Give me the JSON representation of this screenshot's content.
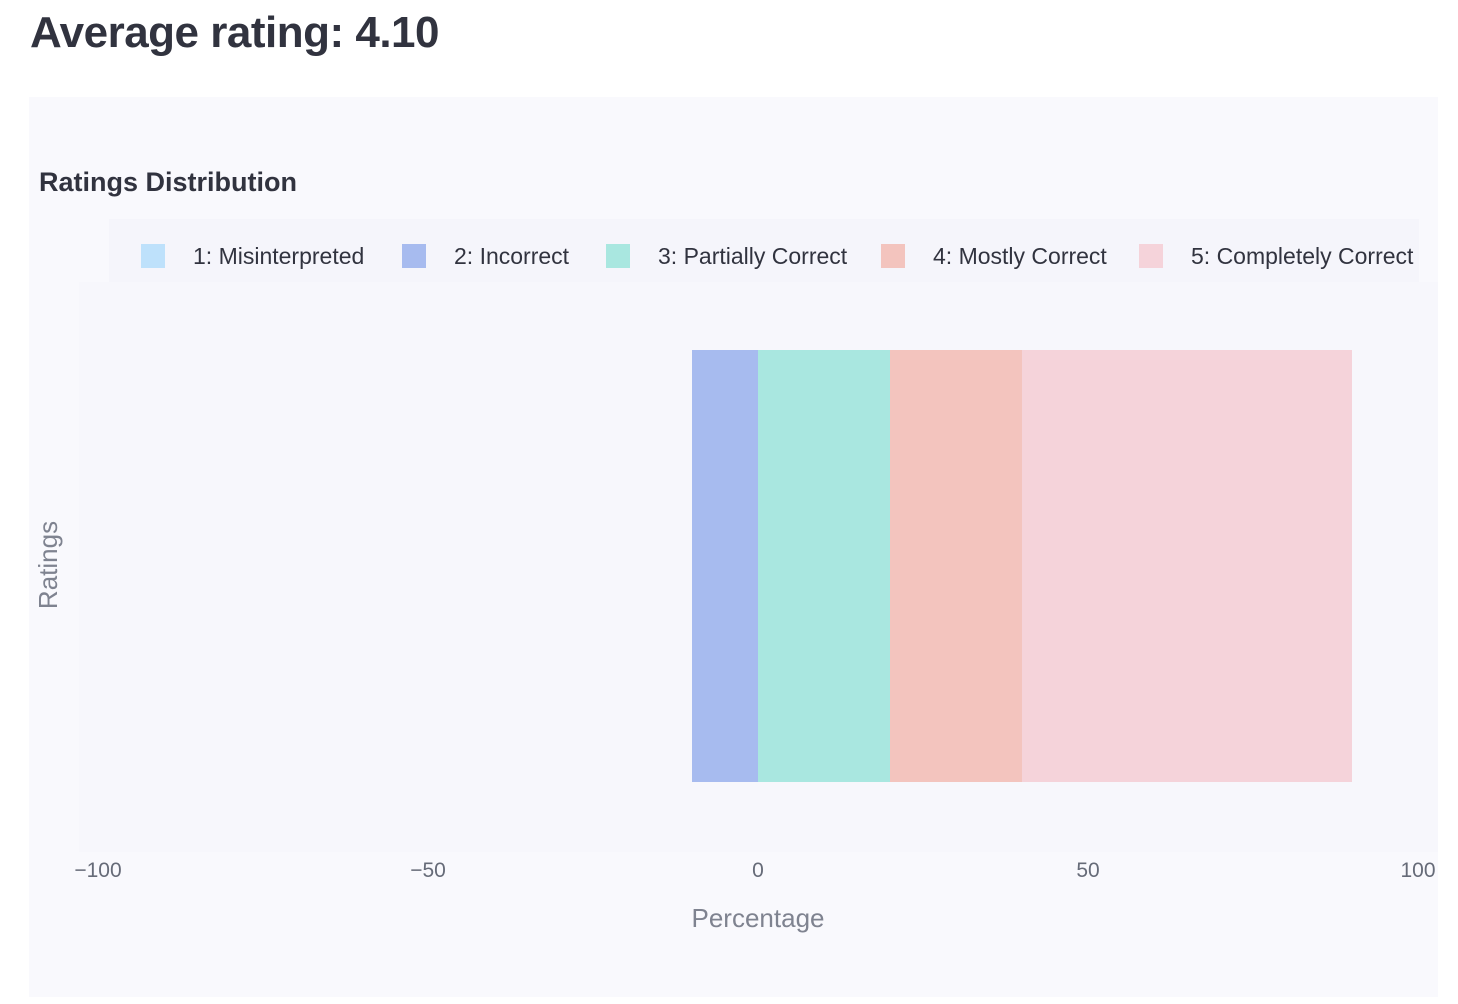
{
  "heading": "Average rating: 4.10",
  "chart_data": {
    "type": "bar",
    "orientation": "horizontal",
    "stacked": true,
    "title": "Ratings Distribution",
    "xlabel": "Percentage",
    "ylabel": "Ratings",
    "xlim": [
      -100,
      100
    ],
    "x_ticks": [
      -100,
      -50,
      0,
      50,
      100
    ],
    "x_tick_labels": [
      "−100",
      "−50",
      "0",
      "50",
      "100"
    ],
    "grid": false,
    "legend_position": "top",
    "series": [
      {
        "name": "1: Misinterpreted",
        "color": "#bee1fb",
        "start": 0,
        "value": 0
      },
      {
        "name": "2: Incorrect",
        "color": "#a7bbef",
        "start": -10,
        "value": 10
      },
      {
        "name": "3: Partially Correct",
        "color": "#a9e7e0",
        "start": 0,
        "value": 20
      },
      {
        "name": "4: Mostly Correct",
        "color": "#f3c4be",
        "start": 20,
        "value": 20
      },
      {
        "name": "5: Completely Correct",
        "color": "#f5d3da",
        "start": 40,
        "value": 50
      }
    ]
  }
}
